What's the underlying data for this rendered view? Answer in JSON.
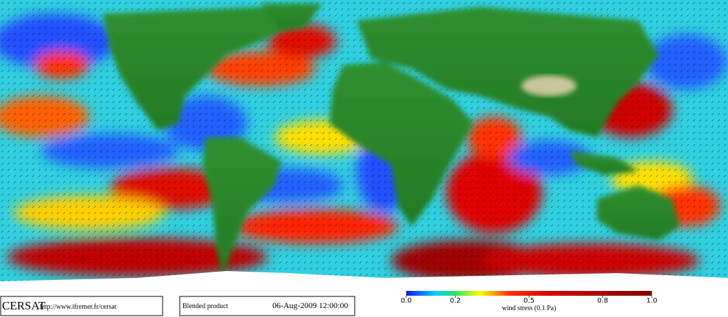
{
  "map": {
    "footer": {
      "logo": "CERSAT",
      "url": "http://www.ifremer.fr/cersat",
      "product": "Blended product",
      "timestamp": "06-Aug-2009 12:00:00"
    },
    "colorbar": {
      "label": "wind stress (0.1 Pa)",
      "range": [
        0,
        1
      ],
      "ticks": [
        {
          "value": 0,
          "label": "0.0"
        },
        0.2,
        0.5,
        0.8,
        {
          "value": 1,
          "label": "1.0"
        }
      ]
    }
  }
}
